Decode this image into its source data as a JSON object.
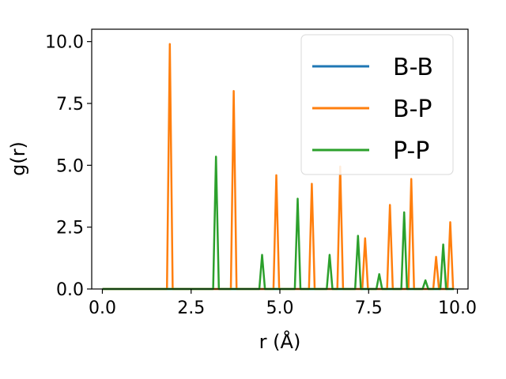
{
  "chart_data": {
    "type": "line",
    "xlabel": "r (Å)",
    "ylabel": "g(r)",
    "xlim": [
      -0.3,
      10.3
    ],
    "ylim": [
      0.0,
      10.5
    ],
    "xticks": [
      0.0,
      2.5,
      5.0,
      7.5,
      10.0
    ],
    "xtick_labels": [
      "0.0",
      "2.5",
      "5.0",
      "7.5",
      "10.0"
    ],
    "yticks": [
      0.0,
      2.5,
      5.0,
      7.5,
      10.0
    ],
    "ytick_labels": [
      "0.0",
      "2.5",
      "5.0",
      "7.5",
      "10.0"
    ],
    "grid": false,
    "legend_position": "top-right",
    "series": [
      {
        "name": "B-B",
        "color": "#1f77b4",
        "peaks": []
      },
      {
        "name": "B-P",
        "color": "#ff7f0e",
        "peaks": [
          {
            "x": 1.9,
            "y": 9.9
          },
          {
            "x": 3.7,
            "y": 8.0
          },
          {
            "x": 4.9,
            "y": 4.6
          },
          {
            "x": 5.9,
            "y": 4.25
          },
          {
            "x": 6.7,
            "y": 4.95
          },
          {
            "x": 7.4,
            "y": 2.05
          },
          {
            "x": 8.1,
            "y": 3.4
          },
          {
            "x": 8.7,
            "y": 4.45
          },
          {
            "x": 9.4,
            "y": 1.3
          },
          {
            "x": 9.8,
            "y": 2.7
          }
        ]
      },
      {
        "name": "P-P",
        "color": "#2ca02c",
        "peaks": [
          {
            "x": 3.2,
            "y": 5.35
          },
          {
            "x": 4.5,
            "y": 1.38
          },
          {
            "x": 5.5,
            "y": 3.65
          },
          {
            "x": 6.4,
            "y": 1.38
          },
          {
            "x": 7.2,
            "y": 2.15
          },
          {
            "x": 7.8,
            "y": 0.6
          },
          {
            "x": 8.5,
            "y": 3.1
          },
          {
            "x": 9.1,
            "y": 0.35
          },
          {
            "x": 9.6,
            "y": 1.8
          }
        ]
      }
    ],
    "x_start": 0.0,
    "x_end": 9.9
  }
}
